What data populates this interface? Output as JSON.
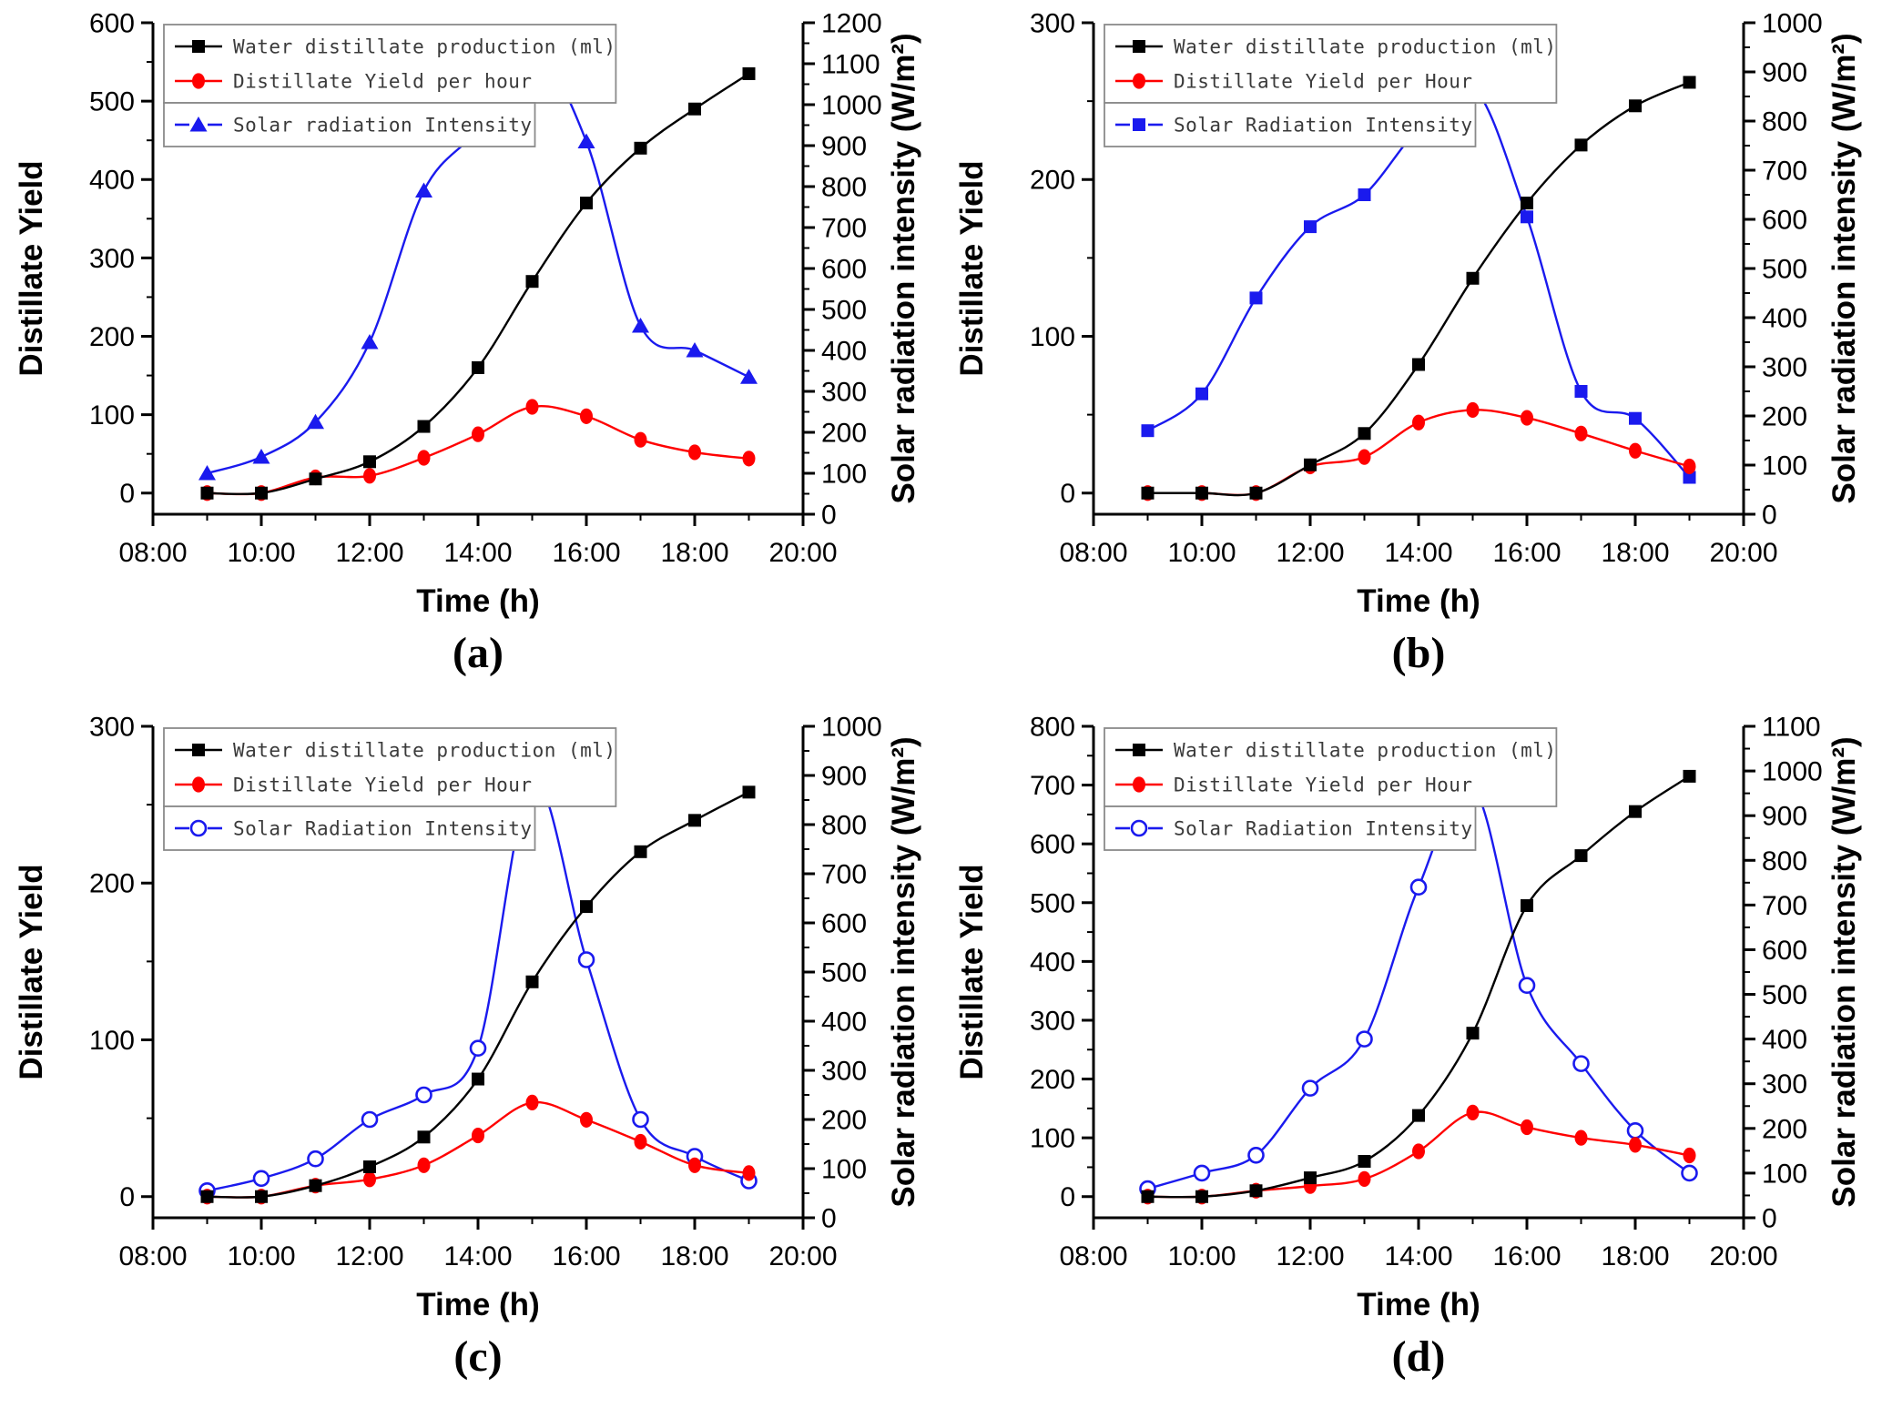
{
  "figure": {
    "background": "#ffffff",
    "axis_color": "#000000",
    "legend_text_color": "#3a3a3a",
    "legend_border_color": "#8a8a8a"
  },
  "chart_data": [
    {
      "id": "a",
      "panel_label": "(a)",
      "type": "line",
      "xlabel": "Time (h)",
      "ylabel_left": "Distillate Yield",
      "ylabel_right": "Solar radiation intensity (W/m²)",
      "x_hours": [
        9,
        10,
        11,
        12,
        13,
        14,
        15,
        16,
        17,
        18,
        19
      ],
      "x_tick_hours": [
        8,
        10,
        12,
        14,
        16,
        18,
        20
      ],
      "x_tick_labels": [
        "08:00",
        "10:00",
        "12:00",
        "14:00",
        "16:00",
        "18:00",
        "20:00"
      ],
      "left_axis": {
        "min": 0,
        "max": 600,
        "major": 100,
        "minor": 50
      },
      "right_axis": {
        "min": 0,
        "max": 1200,
        "major": 100,
        "minor": 50
      },
      "grid": false,
      "legend_position": "top-left",
      "series": [
        {
          "name": "Water distillate production (ml)",
          "color": "#000000",
          "marker": "square",
          "axis": "left",
          "values": [
            0,
            0,
            18,
            40,
            85,
            160,
            270,
            370,
            440,
            490,
            535
          ]
        },
        {
          "name": "Distillate Yield per hour",
          "color": "#ff0000",
          "marker": "ellipse",
          "axis": "left",
          "values": [
            0,
            0,
            20,
            22,
            45,
            75,
            110,
            98,
            68,
            52,
            44
          ]
        },
        {
          "name": "Solar radiation Intensity",
          "color": "#1a1aee",
          "marker": "triangle",
          "axis": "right",
          "values": [
            100,
            140,
            225,
            420,
            790,
            940,
            1130,
            910,
            460,
            400,
            335
          ]
        }
      ]
    },
    {
      "id": "b",
      "panel_label": "(b)",
      "type": "line",
      "xlabel": "Time (h)",
      "ylabel_left": "Distillate Yield",
      "ylabel_right": "Solar radiation intensity (W/m²)",
      "x_hours": [
        9,
        10,
        11,
        12,
        13,
        14,
        15,
        16,
        17,
        18,
        19
      ],
      "x_tick_hours": [
        8,
        10,
        12,
        14,
        16,
        18,
        20
      ],
      "x_tick_labels": [
        "08:00",
        "10:00",
        "12:00",
        "14:00",
        "16:00",
        "18:00",
        "20:00"
      ],
      "left_axis": {
        "min": 0,
        "max": 300,
        "major": 100,
        "minor": 50
      },
      "right_axis": {
        "min": 0,
        "max": 1000,
        "major": 100,
        "minor": 50
      },
      "grid": false,
      "legend_position": "top-left",
      "series": [
        {
          "name": "Water distillate production (ml)",
          "color": "#000000",
          "marker": "square",
          "axis": "left",
          "values": [
            0,
            0,
            0,
            18,
            38,
            82,
            137,
            185,
            222,
            247,
            262
          ]
        },
        {
          "name": "Distillate Yield per Hour",
          "color": "#ff0000",
          "marker": "ellipse",
          "axis": "left",
          "values": [
            0,
            0,
            0,
            17,
            23,
            45,
            53,
            48,
            38,
            27,
            17
          ]
        },
        {
          "name": "Solar Radiation Intensity",
          "color": "#1a1aee",
          "marker": "square-blue",
          "axis": "right",
          "values": [
            170,
            245,
            440,
            585,
            650,
            785,
            870,
            605,
            250,
            195,
            75
          ]
        }
      ]
    },
    {
      "id": "c",
      "panel_label": "(c)",
      "type": "line",
      "xlabel": "Time (h)",
      "ylabel_left": "Distillate Yield",
      "ylabel_right": "Solar radiation intensity (W/m²)",
      "x_hours": [
        9,
        10,
        11,
        12,
        13,
        14,
        15,
        16,
        17,
        18,
        19
      ],
      "x_tick_hours": [
        8,
        10,
        12,
        14,
        16,
        18,
        20
      ],
      "x_tick_labels": [
        "08:00",
        "10:00",
        "12:00",
        "14:00",
        "16:00",
        "18:00",
        "20:00"
      ],
      "left_axis": {
        "min": 0,
        "max": 300,
        "major": 100,
        "minor": 50
      },
      "right_axis": {
        "min": 0,
        "max": 1000,
        "major": 100,
        "minor": 50
      },
      "grid": false,
      "legend_position": "top-left",
      "series": [
        {
          "name": "Water distillate production (ml)",
          "color": "#000000",
          "marker": "square",
          "axis": "left",
          "values": [
            0,
            0,
            7,
            19,
            38,
            75,
            137,
            185,
            220,
            240,
            258
          ]
        },
        {
          "name": "Distillate Yield per Hour",
          "color": "#ff0000",
          "marker": "ellipse",
          "axis": "left",
          "values": [
            0,
            0,
            7,
            11,
            20,
            39,
            60,
            49,
            35,
            20,
            15
          ]
        },
        {
          "name": "Solar Radiation Intensity",
          "color": "#1a1aee",
          "marker": "circle-open",
          "axis": "right",
          "values": [
            55,
            80,
            120,
            200,
            250,
            345,
            885,
            525,
            200,
            125,
            75
          ]
        }
      ]
    },
    {
      "id": "d",
      "panel_label": "(d)",
      "type": "line",
      "xlabel": "Time (h)",
      "ylabel_left": "Distillate Yield",
      "ylabel_right": "Solar radiation intensity (W/m²)",
      "x_hours": [
        9,
        10,
        11,
        12,
        13,
        14,
        15,
        16,
        17,
        18,
        19
      ],
      "x_tick_hours": [
        8,
        10,
        12,
        14,
        16,
        18,
        20
      ],
      "x_tick_labels": [
        "08:00",
        "10:00",
        "12:00",
        "14:00",
        "16:00",
        "18:00",
        "20:00"
      ],
      "left_axis": {
        "min": 0,
        "max": 800,
        "major": 100,
        "minor": 50
      },
      "right_axis": {
        "min": 0,
        "max": 1100,
        "major": 100,
        "minor": 50
      },
      "grid": false,
      "legend_position": "top-left",
      "series": [
        {
          "name": "Water distillate production (ml)",
          "color": "#000000",
          "marker": "square",
          "axis": "left",
          "values": [
            0,
            0,
            10,
            32,
            60,
            138,
            278,
            495,
            580,
            655,
            715
          ]
        },
        {
          "name": "Distillate Yield per Hour",
          "color": "#ff0000",
          "marker": "ellipse",
          "axis": "left",
          "values": [
            0,
            0,
            10,
            18,
            30,
            77,
            143,
            118,
            100,
            88,
            70
          ]
        },
        {
          "name": "Solar Radiation Intensity",
          "color": "#1a1aee",
          "marker": "circle-open",
          "axis": "right",
          "values": [
            65,
            100,
            140,
            290,
            400,
            740,
            965,
            520,
            345,
            195,
            100
          ]
        }
      ]
    }
  ]
}
